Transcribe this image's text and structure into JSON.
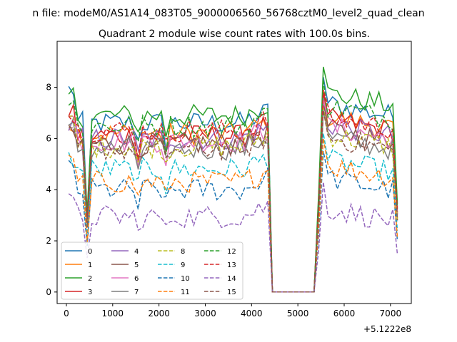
{
  "chart_data": {
    "type": "line",
    "suptitle": "n file: modeM0/AS1A14_083T05_9000006560_56768cztM0_level2_quad_clean",
    "title": "Quadrant 2 module wise count rates with 100.0s bins.",
    "xlabel": "",
    "ylabel": "",
    "x_offset_label": "+5.1222e8",
    "xlim": [
      -200,
      7450
    ],
    "ylim": [
      -0.45,
      9.8
    ],
    "x_ticks": [
      0,
      1000,
      2000,
      3000,
      4000,
      5000,
      6000,
      7000
    ],
    "x_tick_labels": [
      "0",
      "1000",
      "2000",
      "3000",
      "4000",
      "5000",
      "6000",
      "7000"
    ],
    "y_ticks": [
      0,
      2,
      4,
      6,
      8
    ],
    "y_tick_labels": [
      "0",
      "2",
      "4",
      "6",
      "8"
    ],
    "grid": false,
    "legend_position": "lower-left",
    "legend_columns": 4,
    "series": [
      {
        "name": "0",
        "color": "#1f77b4",
        "dash": false,
        "start": 7.9,
        "level": 6.6,
        "post": 7.4
      },
      {
        "name": "1",
        "color": "#ff7f0e",
        "dash": false,
        "start": 6.6,
        "level": 6.2,
        "post": 6.9
      },
      {
        "name": "2",
        "color": "#2ca02c",
        "dash": false,
        "start": 7.65,
        "level": 6.9,
        "post": 7.8
      },
      {
        "name": "3",
        "color": "#d62728",
        "dash": false,
        "start": 7.1,
        "level": 6.1,
        "post": 6.8
      },
      {
        "name": "4",
        "color": "#9467bd",
        "dash": false,
        "start": 6.5,
        "level": 6.0,
        "post": 6.6
      },
      {
        "name": "5",
        "color": "#8c564b",
        "dash": false,
        "start": 6.1,
        "level": 5.8,
        "post": 6.4
      },
      {
        "name": "6",
        "color": "#e377c2",
        "dash": false,
        "start": 6.8,
        "level": 5.9,
        "post": 6.5
      },
      {
        "name": "7",
        "color": "#7f7f7f",
        "dash": false,
        "start": 6.3,
        "level": 5.6,
        "post": 6.1
      },
      {
        "name": "8",
        "color": "#bcbd22",
        "dash": true,
        "start": 6.6,
        "level": 5.7,
        "post": 6.2
      },
      {
        "name": "9",
        "color": "#17becf",
        "dash": true,
        "start": 5.2,
        "level": 4.8,
        "post": 5.2
      },
      {
        "name": "10",
        "color": "#1f77b4",
        "dash": true,
        "start": 4.8,
        "level": 4.0,
        "post": 4.5
      },
      {
        "name": "11",
        "color": "#ff7f0e",
        "dash": true,
        "start": 5.0,
        "level": 4.3,
        "post": 5.0
      },
      {
        "name": "12",
        "color": "#2ca02c",
        "dash": true,
        "start": 7.3,
        "level": 6.5,
        "post": 7.3
      },
      {
        "name": "13",
        "color": "#d62728",
        "dash": true,
        "start": 6.9,
        "level": 6.3,
        "post": 6.9
      },
      {
        "name": "14",
        "color": "#9467bd",
        "dash": true,
        "start": 3.45,
        "level": 2.95,
        "post": 3.3
      },
      {
        "name": "15",
        "color": "#8c564b",
        "dash": true,
        "start": 6.0,
        "level": 5.6,
        "post": 6.1
      }
    ]
  }
}
